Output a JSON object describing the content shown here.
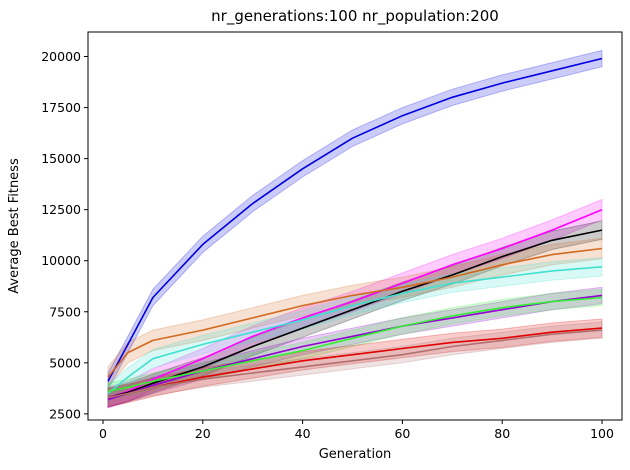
{
  "chart_data": {
    "type": "line",
    "title": "nr_generations:100 nr_population:200",
    "xlabel": "Generation",
    "ylabel": "Average Best Fitness",
    "xlim": [
      -3,
      104
    ],
    "ylim": [
      2200,
      21200
    ],
    "xticks": [
      0,
      20,
      40,
      60,
      80,
      100
    ],
    "yticks": [
      2500,
      5000,
      7500,
      10000,
      12500,
      15000,
      17500,
      20000
    ],
    "xtick_labels": [
      "0",
      "20",
      "40",
      "60",
      "80",
      "100"
    ],
    "ytick_labels": [
      "2500",
      "5000",
      "7500",
      "10000",
      "12500",
      "15000",
      "17500",
      "20000"
    ],
    "grid": false,
    "legend": false,
    "x": [
      1,
      5,
      10,
      20,
      30,
      40,
      50,
      60,
      70,
      80,
      90,
      100
    ],
    "series": [
      {
        "color": "#0000e0",
        "values": [
          4100,
          5900,
          8200,
          10800,
          12800,
          14500,
          16000,
          17100,
          18000,
          18700,
          19300,
          19900
        ],
        "band": 400
      },
      {
        "color": "#ff00ff",
        "values": [
          3300,
          3600,
          4200,
          5200,
          6300,
          7200,
          8000,
          8900,
          9800,
          10600,
          11500,
          12500
        ],
        "band": 500
      },
      {
        "color": "#000000",
        "values": [
          3300,
          3550,
          4000,
          4800,
          5800,
          6700,
          7600,
          8500,
          9300,
          10200,
          11000,
          11500
        ],
        "band": 450
      },
      {
        "color": "#d2691e",
        "values": [
          4300,
          5500,
          6100,
          6600,
          7200,
          7800,
          8300,
          8700,
          9200,
          9800,
          10300,
          10600
        ],
        "band": 500
      },
      {
        "color": "#40e0d0",
        "values": [
          3500,
          4300,
          5200,
          5900,
          6500,
          7100,
          7800,
          8400,
          8900,
          9200,
          9500,
          9700
        ],
        "band": 450
      },
      {
        "color": "#9400d3",
        "values": [
          3200,
          3500,
          3900,
          4600,
          5200,
          5800,
          6300,
          6800,
          7200,
          7600,
          8000,
          8300
        ],
        "band": 400
      },
      {
        "color": "#33ee33",
        "values": [
          3600,
          3800,
          4100,
          4600,
          5100,
          5600,
          6200,
          6800,
          7300,
          7700,
          8000,
          8200
        ],
        "band": 400
      },
      {
        "color": "#e00000",
        "values": [
          3300,
          3500,
          3800,
          4300,
          4700,
          5100,
          5400,
          5700,
          6000,
          6200,
          6500,
          6700
        ],
        "band": 450
      },
      {
        "color": "#b07070",
        "values": [
          3300,
          3500,
          3800,
          4200,
          4500,
          4800,
          5100,
          5400,
          5800,
          6100,
          6400,
          6600
        ],
        "band": 400
      }
    ]
  }
}
